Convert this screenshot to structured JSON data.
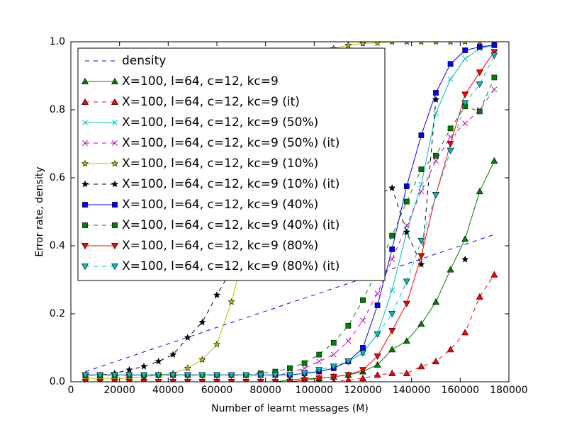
{
  "chart_data": {
    "type": "line",
    "xlabel": "Number of learnt messages (M)",
    "ylabel": "Error rate, density",
    "x": [
      6000,
      12000,
      18000,
      24000,
      30000,
      36000,
      42000,
      48000,
      54000,
      60000,
      66000,
      72000,
      78000,
      84000,
      90000,
      96000,
      102000,
      108000,
      114000,
      120000,
      126000,
      132000,
      138000,
      144000,
      150000,
      156000,
      162000,
      168000,
      174000
    ],
    "xlim": [
      0,
      180000
    ],
    "xticks": [
      0,
      20000,
      40000,
      60000,
      80000,
      100000,
      120000,
      140000,
      160000,
      180000
    ],
    "ylim": [
      0,
      1
    ],
    "yticks": [
      {
        "value": 0,
        "label": "0.0"
      },
      0.2,
      0.4,
      0.6,
      0.8,
      {
        "value": 1,
        "label": "1.0"
      }
    ],
    "legend": "upper left",
    "series": [
      {
        "name": "density",
        "color": "#0000ff",
        "linestyle": "dashed",
        "marker": "none",
        "values": [
          0.03,
          0.044,
          0.059,
          0.073,
          0.088,
          0.102,
          0.116,
          0.131,
          0.145,
          0.16,
          0.174,
          0.188,
          0.203,
          0.217,
          0.232,
          0.246,
          0.26,
          0.275,
          0.289,
          0.304,
          0.318,
          0.332,
          0.347,
          0.361,
          0.376,
          0.39,
          0.404,
          0.419,
          0.433
        ]
      },
      {
        "name": "X=100, l=64, c=12, kc=9",
        "color": "#008000",
        "linestyle": "solid",
        "marker": "triangle-up",
        "values": [
          0,
          0,
          0,
          0,
          0,
          0,
          0,
          0,
          0,
          0,
          0,
          0,
          0,
          0,
          0.005,
          0.01,
          0.01,
          0.015,
          0.02,
          0.03,
          0.05,
          0.095,
          0.12,
          0.17,
          0.235,
          0.33,
          0.42,
          0.56,
          0.65
        ]
      },
      {
        "name": "X=100, l=64, c=12, kc=9 (it)",
        "color": "#ff0000",
        "linestyle": "dashed",
        "marker": "triangle-up",
        "values": [
          0,
          0,
          0,
          0,
          0,
          0,
          0,
          0,
          0,
          0,
          0,
          0,
          0,
          0,
          0,
          0,
          0,
          0,
          0.005,
          0.01,
          0.02,
          0.025,
          0.025,
          0.045,
          0.06,
          0.095,
          0.145,
          0.25,
          0.315
        ]
      },
      {
        "name": "X=100, l=64, c=12, kc=9 (50%)",
        "color": "#00bfbf",
        "linestyle": "solid",
        "marker": "x",
        "values": [
          0.02,
          0.02,
          0.02,
          0.02,
          0.02,
          0.02,
          0.02,
          0.02,
          0.02,
          0.02,
          0.02,
          0.02,
          0.02,
          0.02,
          0.02,
          0.025,
          0.03,
          0.04,
          0.06,
          0.085,
          0.14,
          0.27,
          0.44,
          0.58,
          0.79,
          0.89,
          0.95,
          0.98,
          0.99
        ]
      },
      {
        "name": "X=100, l=64, c=12, kc=9 (50%) (it)",
        "color": "#bf00bf",
        "linestyle": "dashed",
        "marker": "x",
        "values": [
          0.02,
          0.02,
          0.02,
          0.02,
          0.02,
          0.02,
          0.02,
          0.02,
          0.02,
          0.02,
          0.02,
          0.02,
          0.02,
          0.02,
          0.025,
          0.04,
          0.06,
          0.08,
          0.12,
          0.18,
          0.26,
          0.36,
          0.46,
          0.56,
          0.65,
          0.72,
          0.76,
          0.8,
          0.86
        ]
      },
      {
        "name": "X=100, l=64, c=12, kc=9 (10%)",
        "color": "#bfbf00",
        "linestyle": "solid",
        "marker": "star",
        "values": [
          0.01,
          0.01,
          0.01,
          0.01,
          0.015,
          0.02,
          0.025,
          0.04,
          0.065,
          0.11,
          0.235,
          0.4,
          0.57,
          0.72,
          0.85,
          0.93,
          0.96,
          0.98,
          0.99,
          0.995,
          0.997,
          1,
          1,
          1,
          1,
          1,
          1,
          1,
          1
        ]
      },
      {
        "name": "X=100, l=64, c=12, kc=9 (10%) (it)",
        "color": "#000000",
        "linestyle": "dashed",
        "marker": "star",
        "values": [
          0.02,
          0.02,
          0.025,
          0.035,
          0.045,
          0.06,
          0.08,
          0.13,
          0.175,
          0.255,
          0.33,
          0.42,
          0.5,
          0.58,
          0.65,
          0.7,
          0.75,
          0.7,
          0.65,
          0.6,
          0.55,
          0.57,
          0.44,
          0.345,
          0.83,
          null,
          0.36,
          null,
          null
        ]
      },
      {
        "name": "X=100, l=64, c=12, kc=9 (40%)",
        "color": "#0000ff",
        "linestyle": "solid",
        "marker": "square",
        "values": [
          0.02,
          0.02,
          0.02,
          0.02,
          0.02,
          0.02,
          0.02,
          0.02,
          0.02,
          0.02,
          0.02,
          0.02,
          0.02,
          0.02,
          0.02,
          0.025,
          0.03,
          0.04,
          0.06,
          0.1,
          0.225,
          0.39,
          0.575,
          0.725,
          0.85,
          0.935,
          0.975,
          0.985,
          0.99
        ]
      },
      {
        "name": "X=100, l=64, c=12, kc=9 (40%) (it)",
        "color": "#008000",
        "linestyle": "dashed",
        "marker": "square",
        "values": [
          0.02,
          0.02,
          0.02,
          0.02,
          0.02,
          0.02,
          0.02,
          0.02,
          0.02,
          0.02,
          0.02,
          0.02,
          0.025,
          0.03,
          0.04,
          0.055,
          0.08,
          0.115,
          0.165,
          0.24,
          0.33,
          0.43,
          0.53,
          0.625,
          0.665,
          0.745,
          0.81,
          0.795,
          0.895
        ]
      },
      {
        "name": "X=100, l=64, c=12, kc=9 (80%)",
        "color": "#ff0000",
        "linestyle": "solid",
        "marker": "triangle-down",
        "values": [
          0,
          0,
          0,
          0,
          0,
          0,
          0,
          0,
          0,
          0,
          0,
          0,
          0,
          0,
          0,
          0.005,
          0.01,
          0.015,
          0.02,
          0.035,
          0.075,
          0.15,
          0.23,
          0.37,
          0.55,
          0.7,
          0.845,
          0.91,
          0.97
        ]
      },
      {
        "name": "X=100, l=64, c=12, kc=9 (80%) (it)",
        "color": "#00bfbf",
        "linestyle": "dashed",
        "marker": "triangle-down",
        "values": [
          0.02,
          0.02,
          0.02,
          0.02,
          0.02,
          0.02,
          0.02,
          0.02,
          0.02,
          0.02,
          0.02,
          0.02,
          0.02,
          0.02,
          0.02,
          0.025,
          0.035,
          0.045,
          0.06,
          0.085,
          0.14,
          0.2,
          0.295,
          0.415,
          0.55,
          0.68,
          0.82,
          0.875,
          0.96
        ]
      }
    ]
  }
}
